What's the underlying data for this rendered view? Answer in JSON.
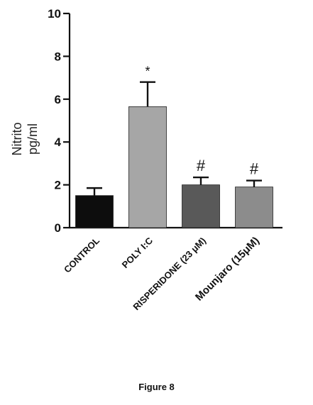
{
  "chart_data": {
    "type": "bar",
    "categories": [
      "CONTROL",
      "POLY I:C",
      "RISPERIDONE (23 μM)",
      "Mounjaro  (15μM)"
    ],
    "values": [
      1.5,
      5.65,
      2.0,
      1.9
    ],
    "errors": [
      0.35,
      1.15,
      0.35,
      0.3
    ],
    "annotations": [
      "",
      "*",
      "#",
      "#"
    ],
    "bar_colors": [
      "#0d0d0d",
      "#a6a6a6",
      "#595959",
      "#8c8c8c"
    ],
    "ylabel_line1": "Nitrito",
    "ylabel_line2": "pg/ml",
    "xlabel": "",
    "ylim": [
      0,
      10
    ],
    "yticks": [
      0,
      2,
      4,
      6,
      8,
      10
    ],
    "grid": false
  },
  "caption": "Figure 8"
}
